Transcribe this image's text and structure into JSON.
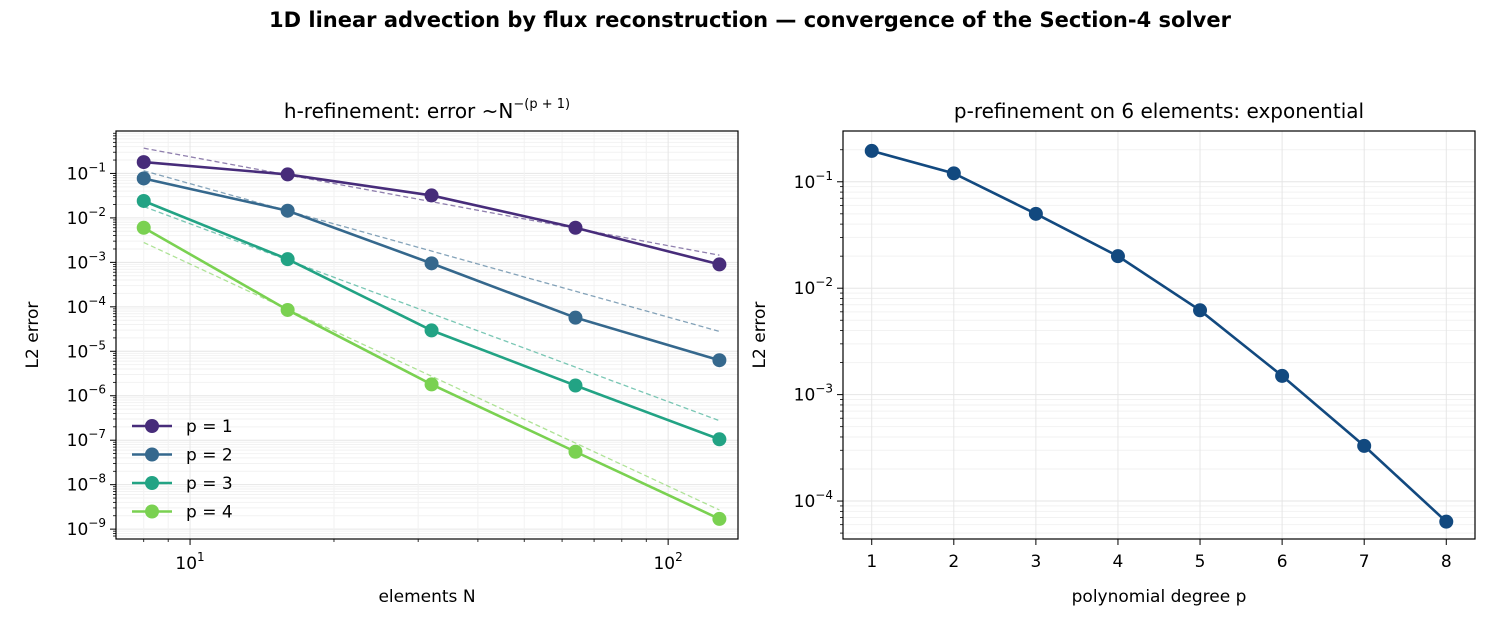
{
  "figure": {
    "title": "1D linear advection by flux reconstruction — convergence of the Section-4 solver"
  },
  "chart_data": [
    {
      "type": "line",
      "title": "h-refinement: error  ~N",
      "title_exponent": "−(p + 1)",
      "xlabel": "elements  N",
      "ylabel": "L2 error",
      "xscale": "log",
      "yscale": "log",
      "xlim": [
        7.0,
        140
      ],
      "ylim": [
        6e-10,
        0.9
      ],
      "xticks": [
        10,
        100
      ],
      "xtick_labels": [
        {
          "base": "10",
          "exp": "1"
        },
        {
          "base": "10",
          "exp": "2"
        }
      ],
      "yticks": [
        1e-09,
        1e-08,
        1e-07,
        1e-06,
        1e-05,
        0.0001,
        0.001,
        0.01,
        0.1
      ],
      "ytick_labels": [
        {
          "base": "10",
          "exp": "−9"
        },
        {
          "base": "10",
          "exp": "−8"
        },
        {
          "base": "10",
          "exp": "−7"
        },
        {
          "base": "10",
          "exp": "−6"
        },
        {
          "base": "10",
          "exp": "−5"
        },
        {
          "base": "10",
          "exp": "−4"
        },
        {
          "base": "10",
          "exp": "−3"
        },
        {
          "base": "10",
          "exp": "−2"
        },
        {
          "base": "10",
          "exp": "−1"
        }
      ],
      "grid": true,
      "legend_position": "lower-left",
      "x": [
        8,
        16,
        32,
        64,
        128
      ],
      "series": [
        {
          "name": "p = 1",
          "color": "#472c7a",
          "values": [
            0.18,
            0.095,
            0.032,
            0.006,
            0.0009
          ]
        },
        {
          "name": "p = 2",
          "color": "#35688d",
          "values": [
            0.077,
            0.0145,
            0.00095,
            5.7e-05,
            6.3e-06
          ]
        },
        {
          "name": "p = 3",
          "color": "#22a384",
          "values": [
            0.024,
            0.00118,
            2.95e-05,
            1.7e-06,
            1.05e-07
          ]
        },
        {
          "name": "p = 4",
          "color": "#7ad151",
          "values": [
            0.006,
            8.5e-05,
            1.8e-06,
            5.5e-08,
            1.7e-09
          ]
        }
      ],
      "reference_lines": [
        {
          "color": "#472c7a",
          "x": [
            8,
            128
          ],
          "values": [
            0.37,
            0.00145
          ]
        },
        {
          "color": "#35688d",
          "x": [
            8,
            128
          ],
          "values": [
            0.115,
            2.8e-05
          ]
        },
        {
          "color": "#22a384",
          "x": [
            8,
            128
          ],
          "values": [
            0.018,
            2.75e-07
          ]
        },
        {
          "color": "#7ad151",
          "x": [
            8,
            128
          ],
          "values": [
            0.0028,
            2.7e-09
          ]
        }
      ]
    },
    {
      "type": "line",
      "title": "p-refinement on 6 elements: exponential",
      "xlabel": "polynomial degree  p",
      "ylabel": "L2 error",
      "xscale": "linear",
      "yscale": "log",
      "xlim": [
        0.65,
        8.35
      ],
      "ylim": [
        4.4e-05,
        0.3
      ],
      "xticks": [
        1,
        2,
        3,
        4,
        5,
        6,
        7,
        8
      ],
      "yticks": [
        0.0001,
        0.001,
        0.01,
        0.1
      ],
      "ytick_labels": [
        {
          "base": "10",
          "exp": "−4"
        },
        {
          "base": "10",
          "exp": "−3"
        },
        {
          "base": "10",
          "exp": "−2"
        },
        {
          "base": "10",
          "exp": "−1"
        }
      ],
      "grid": true,
      "x": [
        1,
        2,
        3,
        4,
        5,
        6,
        7,
        8
      ],
      "series": [
        {
          "color": "#12497f",
          "values": [
            0.195,
            0.12,
            0.05,
            0.02,
            0.0062,
            0.0015,
            0.00033,
            6.4e-05
          ]
        }
      ]
    }
  ]
}
